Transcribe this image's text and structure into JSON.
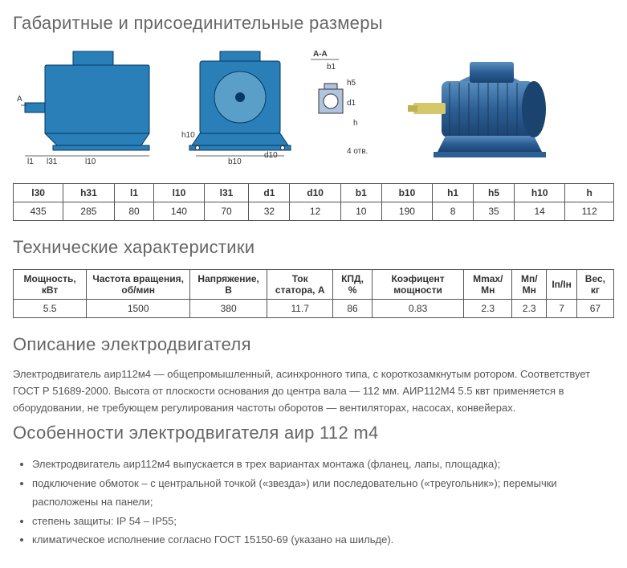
{
  "section1_title": "Габаритные и присоединительные размеры",
  "section2_title": "Технические характеристики",
  "section3_title": "Описание электродвигателя",
  "section4_title": "Особенности электродвигателя аир 112 m4",
  "dimensions_table": {
    "headers": [
      "l30",
      "h31",
      "l1",
      "l10",
      "l31",
      "d1",
      "d10",
      "b1",
      "b10",
      "h1",
      "h5",
      "h10",
      "h"
    ],
    "values": [
      "435",
      "285",
      "80",
      "140",
      "70",
      "32",
      "12",
      "10",
      "190",
      "8",
      "35",
      "14",
      "112"
    ]
  },
  "specs_table": {
    "headers": [
      "Мощность, кВт",
      "Частота вращения, об/мин",
      "Напряжение, В",
      "Ток статора, А",
      "КПД, %",
      "Коэфицент мощности",
      "Mmax/Мн",
      "Мп/Мн",
      "Iп/Iн",
      "Вес, кг"
    ],
    "values": [
      "5.5",
      "1500",
      "380",
      "11.7",
      "86",
      "0.83",
      "2.3",
      "2.3",
      "7",
      "67"
    ]
  },
  "description": "Электродвигатель аир112м4 — общепромышленный, асинхронного типа, с короткозамкнутым ротором. Соответствует ГОСТ Р 51689-2000. Высота от плоскости основания до центра вала — 112 мм. АИР112М4 5.5 квт применяется в оборудовании, не требующем регулирования частоты оборотов — вентиляторах, насосах, конвейерах.",
  "features": [
    "Электродвигатель аир112м4 выпускается в трех вариантах монтажа (фланец, лапы, площадка);",
    "подключение обмоток – с центральной точкой («звезда») или последовательно («треугольник»); перемычки расположены на панели;",
    "степень защиты: IP 54 – IP55;",
    "климатическое исполнение согласно ГОСТ 15150-69 (указано на шильде)."
  ],
  "diagram": {
    "motor_fill": "#2a7fb8",
    "motor_stroke": "#003a64",
    "section_label": "A-A",
    "labels_side": [
      "A",
      "l1",
      "l31",
      "l10"
    ],
    "labels_front": [
      "h10",
      "b10",
      "d10",
      "4 отв."
    ],
    "labels_detail": [
      "b1",
      "h5",
      "d1",
      "h"
    ],
    "photo_bg": "#3b6fa8"
  }
}
